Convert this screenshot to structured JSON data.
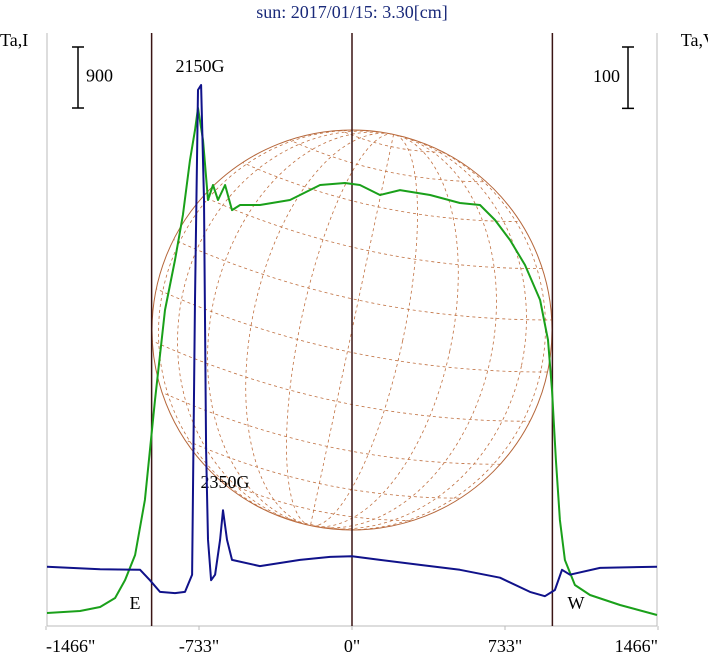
{
  "chart_data": {
    "type": "line",
    "title": "sun: 2017/01/15: 3.30[cm]",
    "y_label": "Ta,I",
    "y2_label": "Ta,V",
    "xlim": [
      -1466,
      1466
    ],
    "xticks": [
      {
        "value": -1466,
        "label": "-1466\""
      },
      {
        "value": -733,
        "label": "-733\""
      },
      {
        "value": 0,
        "label": "0\""
      },
      {
        "value": 733,
        "label": "733\""
      },
      {
        "value": 1466,
        "label": "1466\""
      }
    ],
    "ylim": [
      0,
      8600
    ],
    "y2lim": [
      0,
      950
    ],
    "y_scale_bar": 900,
    "y2_scale_bar": 100,
    "vlines": [
      -960,
      0,
      960
    ],
    "annotations": [
      "2150G",
      "2350G",
      "E",
      "W"
    ],
    "series": [
      {
        "name": "Ta,I",
        "color": "#1aa01a",
        "x": [
          -1461,
          -1303,
          -1207,
          -1135,
          -1087,
          -1039,
          -992,
          -944,
          -896,
          -848,
          -810,
          -776,
          -752,
          -738,
          -714,
          -690,
          -666,
          -642,
          -608,
          -575,
          -536,
          -441,
          -297,
          -153,
          -34,
          38,
          134,
          230,
          374,
          517,
          613,
          685,
          757,
          829,
          901,
          939,
          958,
          977,
          996,
          1020,
          1068,
          1140,
          1284,
          1461
        ],
        "values": [
          177,
          207,
          265,
          398,
          664,
          1033,
          1844,
          3319,
          4646,
          5384,
          6048,
          6859,
          7301,
          7626,
          7154,
          6269,
          6490,
          6269,
          6490,
          6121,
          6195,
          6195,
          6269,
          6490,
          6520,
          6490,
          6343,
          6416,
          6343,
          6225,
          6195,
          5974,
          5679,
          5310,
          4794,
          4204,
          3466,
          2434,
          1549,
          959,
          590,
          443,
          295,
          148
        ]
      },
      {
        "name": "Ta,V",
        "color": "#10128a",
        "axis": "y2",
        "x": [
          -1461,
          -1207,
          -1015,
          -968,
          -920,
          -848,
          -800,
          -766,
          -752,
          -738,
          -723,
          -709,
          -699,
          -690,
          -675,
          -656,
          -632,
          -618,
          -599,
          -575,
          -441,
          -249,
          -105,
          0,
          134,
          326,
          517,
          709,
          853,
          924,
          972,
          1006,
          1044,
          1188,
          1461
        ],
        "values": [
          95,
          91,
          90,
          73,
          54,
          52,
          54,
          82,
          530,
          872,
          880,
          693,
          285,
          139,
          73,
          82,
          139,
          187,
          139,
          106,
          96,
          106,
          111,
          112,
          106,
          98,
          90,
          77,
          54,
          47,
          57,
          90,
          82,
          93,
          95
        ]
      }
    ]
  }
}
